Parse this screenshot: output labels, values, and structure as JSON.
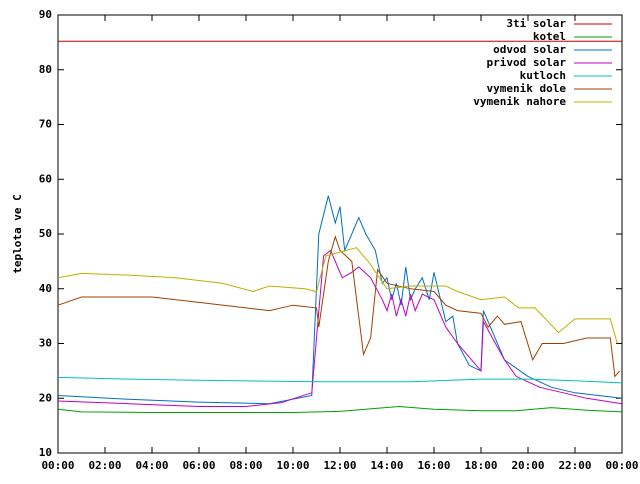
{
  "chart_data": {
    "type": "line",
    "y_label": "teplota ve C",
    "xlim": [
      0,
      24
    ],
    "ylim": [
      10,
      90
    ],
    "xticks": [
      {
        "value": 0,
        "label": "00:00"
      },
      {
        "value": 2,
        "label": "02:00"
      },
      {
        "value": 4,
        "label": "04:00"
      },
      {
        "value": 6,
        "label": "06:00"
      },
      {
        "value": 8,
        "label": "08:00"
      },
      {
        "value": 10,
        "label": "10:00"
      },
      {
        "value": 12,
        "label": "12:00"
      },
      {
        "value": 14,
        "label": "14:00"
      },
      {
        "value": 16,
        "label": "16:00"
      },
      {
        "value": 18,
        "label": "18:00"
      },
      {
        "value": 20,
        "label": "20:00"
      },
      {
        "value": 22,
        "label": "22:00"
      },
      {
        "value": 24,
        "label": "00:00"
      }
    ],
    "yticks": [
      10,
      20,
      30,
      40,
      50,
      60,
      70,
      80,
      90
    ],
    "legend": "top-right",
    "series": [
      {
        "name": "3ti solar",
        "color": "#c00000",
        "x": [
          0,
          24
        ],
        "values": [
          85.2,
          85.2
        ]
      },
      {
        "name": "kotel",
        "color": "#00a000",
        "x": [
          0,
          1,
          4,
          10,
          12,
          14.5,
          16,
          18,
          19.5,
          21,
          22.5,
          24
        ],
        "values": [
          18,
          17.5,
          17.4,
          17.4,
          17.6,
          18.5,
          18,
          17.7,
          17.7,
          18.3,
          17.8,
          17.5
        ]
      },
      {
        "name": "odvod solar",
        "color": "#0070c0",
        "x": [
          0,
          3,
          6,
          9,
          10.8,
          11.1,
          11.5,
          11.8,
          12,
          12.2,
          12.5,
          12.8,
          13.1,
          13.5,
          13.8,
          14,
          14.2,
          14.4,
          14.6,
          14.8,
          15,
          15.2,
          15.5,
          15.8,
          16,
          16.5,
          16.8,
          17,
          17.5,
          18,
          18.1,
          18.5,
          19,
          20,
          21,
          22,
          23,
          24
        ],
        "values": [
          20.5,
          19.8,
          19.3,
          19,
          20.5,
          50,
          57,
          52,
          55,
          47,
          50,
          53,
          50,
          47,
          41,
          42,
          38,
          41,
          37,
          44,
          38,
          40,
          42,
          38,
          43,
          34,
          35,
          30,
          26,
          25,
          36,
          32,
          27,
          24,
          22,
          21,
          20.5,
          20
        ]
      },
      {
        "name": "privod solar",
        "color": "#c000c0",
        "x": [
          0,
          3,
          6,
          8,
          9.5,
          10.8,
          11.3,
          11.6,
          12.1,
          12.5,
          12.8,
          13.3,
          13.8,
          14,
          14.2,
          14.4,
          14.6,
          14.8,
          15,
          15.2,
          15.5,
          16,
          16.5,
          17,
          18,
          18.1,
          19,
          19.5,
          20.5,
          21.5,
          22.5,
          24
        ],
        "values": [
          19.5,
          19,
          18.5,
          18.5,
          19.2,
          21,
          46,
          47,
          42,
          43,
          44,
          42,
          38,
          36,
          39,
          35,
          38,
          35,
          39,
          36,
          39,
          38,
          33,
          30,
          25,
          34,
          27,
          24,
          22,
          21,
          20,
          19
        ]
      },
      {
        "name": "kutloch",
        "color": "#00c0c0",
        "x": [
          0,
          3,
          6,
          11,
          15,
          18,
          20,
          22,
          24
        ],
        "values": [
          23.8,
          23.5,
          23.3,
          23,
          23,
          23.5,
          23.5,
          23.2,
          22.8
        ]
      },
      {
        "name": "vymenik dole",
        "color": "#a04000",
        "x": [
          0,
          1,
          4,
          6,
          8,
          9,
          10,
          11,
          11.1,
          11.5,
          11.8,
          12,
          12.5,
          13,
          13.3,
          13.6,
          14,
          15,
          16,
          16.5,
          17,
          18,
          18.3,
          18.7,
          19,
          19.7,
          20.2,
          20.6,
          21.5,
          22.5,
          23.5,
          23.7,
          23.9
        ],
        "values": [
          37,
          38.5,
          38.5,
          37.5,
          36.5,
          36,
          37,
          36.5,
          33,
          45,
          49.5,
          47,
          45,
          28,
          31,
          43.5,
          41,
          40,
          39.5,
          37,
          36,
          35.5,
          33,
          35,
          33.5,
          34,
          27,
          30,
          30,
          31,
          31,
          24,
          25
        ]
      },
      {
        "name": "vymenik nahore",
        "color": "#c0b000",
        "x": [
          0,
          1,
          3,
          5,
          7,
          8.3,
          9,
          10.5,
          11,
          11.4,
          12.7,
          13.2,
          14,
          15,
          16.5,
          17,
          18,
          19,
          19.6,
          20.3,
          21.3,
          22,
          23.5,
          23.8
        ],
        "values": [
          42,
          42.8,
          42.5,
          42,
          41,
          39.5,
          40.5,
          40,
          39.5,
          46,
          47.5,
          45,
          40,
          40.5,
          40.5,
          39.5,
          38,
          38.5,
          36.5,
          36.5,
          32,
          34.5,
          34.5,
          30
        ]
      }
    ]
  }
}
